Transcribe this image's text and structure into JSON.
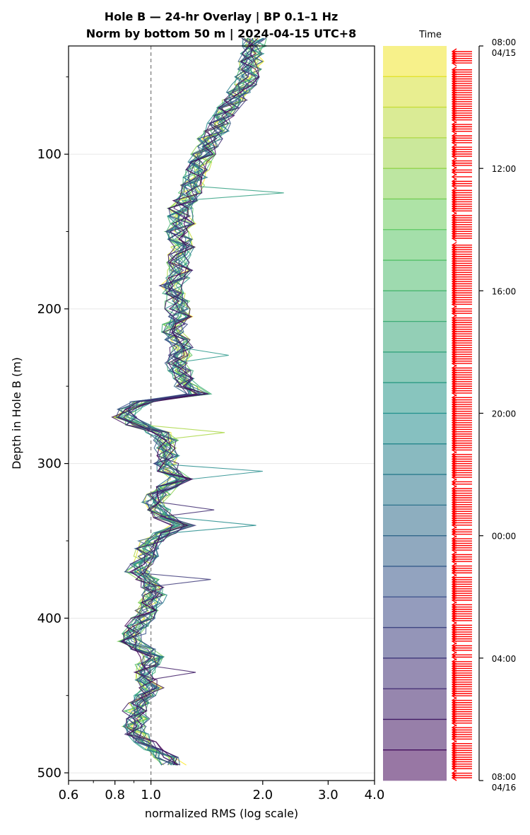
{
  "title_line1": "Hole B — 24-hr Overlay  |  BP 0.1–1 Hz",
  "title_line2": "Norm by bottom 50 m  |  2024-04-15 UTC+8",
  "time_header": "Time",
  "chart_data": {
    "type": "line",
    "xlabel": "normalized RMS  (log scale)",
    "ylabel": "Depth in Hole B (m)",
    "x_scale": "log",
    "xlim": [
      0.6,
      4.0
    ],
    "ylim": [
      505,
      30
    ],
    "xticks": [
      {
        "value": 0.6,
        "label": "0.6"
      },
      {
        "value": 0.8,
        "label": "0.8"
      },
      {
        "value": 1.0,
        "label": "1.0"
      },
      {
        "value": 2.0,
        "label": "2.0"
      },
      {
        "value": 3.0,
        "label": "3.0"
      },
      {
        "value": 4.0,
        "label": "4.0"
      }
    ],
    "yticks": [
      {
        "value": 100,
        "label": "100"
      },
      {
        "value": 200,
        "label": "200"
      },
      {
        "value": 300,
        "label": "300"
      },
      {
        "value": 400,
        "label": "400"
      },
      {
        "value": 500,
        "label": "500"
      }
    ],
    "reference_line_x": 1.0,
    "grid": "horizontal",
    "colormap": "viridis",
    "n_series": 24,
    "depths": [
      25,
      30,
      35,
      40,
      45,
      50,
      55,
      60,
      65,
      70,
      75,
      80,
      85,
      90,
      95,
      100,
      105,
      110,
      115,
      120,
      125,
      130,
      135,
      140,
      145,
      150,
      155,
      160,
      165,
      170,
      175,
      180,
      185,
      190,
      195,
      200,
      205,
      210,
      215,
      220,
      225,
      230,
      235,
      240,
      245,
      250,
      255,
      260,
      265,
      270,
      275,
      280,
      285,
      290,
      295,
      300,
      305,
      310,
      315,
      320,
      325,
      330,
      335,
      340,
      345,
      350,
      355,
      360,
      365,
      370,
      375,
      380,
      385,
      390,
      395,
      400,
      405,
      410,
      415,
      420,
      425,
      430,
      435,
      440,
      445,
      450,
      455,
      460,
      465,
      470,
      475,
      480,
      485,
      490,
      495
    ],
    "base_profile": [
      1.9,
      1.9,
      1.88,
      1.86,
      1.85,
      1.82,
      1.78,
      1.72,
      1.68,
      1.62,
      1.58,
      1.52,
      1.5,
      1.44,
      1.42,
      1.38,
      1.36,
      1.34,
      1.32,
      1.3,
      1.28,
      1.24,
      1.2,
      1.2,
      1.22,
      1.18,
      1.2,
      1.22,
      1.2,
      1.18,
      1.2,
      1.18,
      1.12,
      1.15,
      1.18,
      1.18,
      1.2,
      1.16,
      1.15,
      1.18,
      1.2,
      1.2,
      1.18,
      1.2,
      1.22,
      1.25,
      1.35,
      0.95,
      0.88,
      0.85,
      0.92,
      1.05,
      1.1,
      1.08,
      1.12,
      1.1,
      1.12,
      1.2,
      1.1,
      1.05,
      1.0,
      1.05,
      1.1,
      1.22,
      1.08,
      1.0,
      0.98,
      0.97,
      0.95,
      0.92,
      0.98,
      1.0,
      1.02,
      1.0,
      0.98,
      0.95,
      0.92,
      0.9,
      0.88,
      0.95,
      1.0,
      0.98,
      0.96,
      0.98,
      1.0,
      0.96,
      0.94,
      0.9,
      0.92,
      0.9,
      0.92,
      0.96,
      1.0,
      1.1,
      1.15
    ],
    "spikes": [
      {
        "series": 10,
        "depth": 125,
        "value": 2.28
      },
      {
        "series": 11,
        "depth": 230,
        "value": 1.62
      },
      {
        "series": 3,
        "depth": 280,
        "value": 1.58
      },
      {
        "series": 12,
        "depth": 305,
        "value": 2.0
      },
      {
        "series": 12,
        "depth": 340,
        "value": 1.92
      },
      {
        "series": 20,
        "depth": 330,
        "value": 1.48
      },
      {
        "series": 19,
        "depth": 375,
        "value": 1.45
      },
      {
        "series": 21,
        "depth": 435,
        "value": 1.32
      }
    ],
    "colorbar": {
      "label": "Time",
      "ticks": [
        {
          "frac": 0.0,
          "line1": "08:00",
          "line2": "04/15"
        },
        {
          "frac": 0.1667,
          "line1": "12:00",
          "line2": ""
        },
        {
          "frac": 0.3333,
          "line1": "16:00",
          "line2": ""
        },
        {
          "frac": 0.5,
          "line1": "20:00",
          "line2": ""
        },
        {
          "frac": 0.6667,
          "line1": "00:00",
          "line2": ""
        },
        {
          "frac": 0.8333,
          "line1": "04:00",
          "line2": ""
        },
        {
          "frac": 1.0,
          "line1": "08:00",
          "line2": "04/16"
        }
      ]
    }
  }
}
